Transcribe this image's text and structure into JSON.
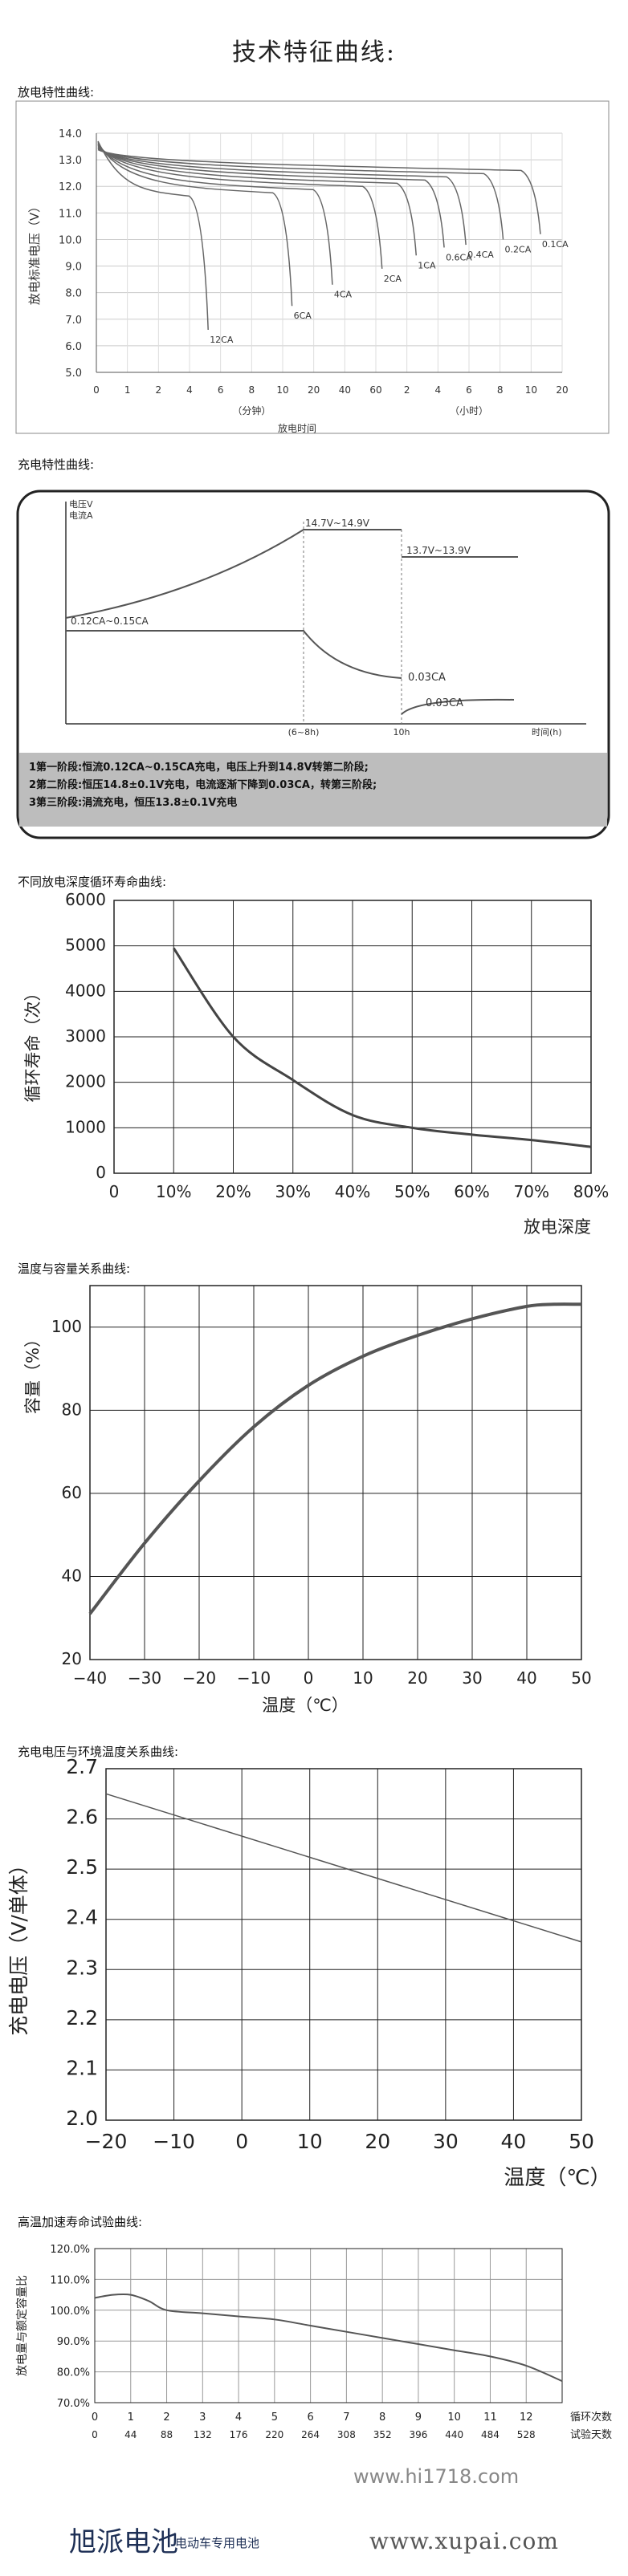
{
  "page": {
    "title": "技术特征曲线:",
    "footer_brand": "旭派电池",
    "footer_sub": "电动车专用电池",
    "watermarks": [
      "www.hi1718.com",
      "www.xupai.com"
    ]
  },
  "chart_data": [
    {
      "id": "discharge",
      "section_label": "放电特性曲线:",
      "type": "line",
      "ylabel": "放电标准电压（V）",
      "xlabel": "放电时间",
      "x_unit_labels": [
        "（分钟）",
        "（小时）"
      ],
      "x_ticks": [
        "0",
        "1",
        "2",
        "4",
        "6",
        "8",
        "10",
        "20",
        "40",
        "60",
        "2",
        "4",
        "6",
        "8",
        "10",
        "20"
      ],
      "ylim": [
        5.0,
        14.0
      ],
      "y_ticks": [
        "14.0",
        "13.0",
        "12.0",
        "11.0",
        "10.0",
        "9.0",
        "8.0",
        "7.0",
        "6.0",
        "5.0"
      ],
      "series": [
        {
          "name": "12CA",
          "end_v": 6.6,
          "end_t": 3.6
        },
        {
          "name": "6CA",
          "end_v": 7.5,
          "end_t": 6.3
        },
        {
          "name": "4CA",
          "end_v": 8.3,
          "end_t": 7.6
        },
        {
          "name": "2CA",
          "end_v": 8.9,
          "end_t": 9.2
        },
        {
          "name": "1CA",
          "end_v": 9.4,
          "end_t": 10.3
        },
        {
          "name": "0.6CA",
          "end_v": 9.7,
          "end_t": 11.2
        },
        {
          "name": "0.4CA",
          "end_v": 9.8,
          "end_t": 11.9
        },
        {
          "name": "0.2CA",
          "end_v": 10.0,
          "end_t": 13.1
        },
        {
          "name": "0.1CA",
          "end_v": 10.2,
          "end_t": 14.3
        }
      ],
      "grid": true
    },
    {
      "id": "charge",
      "section_label": "充电特性曲线:",
      "type": "line",
      "y_axis_labels": [
        "电压V",
        "电流A"
      ],
      "x_axis_label": "时间(h)",
      "x_marks": [
        "(6~8h)",
        "10h"
      ],
      "annotations": [
        "14.7V~14.9V",
        "13.7V~13.9V",
        "0.12CA~0.15CA",
        "0.03CA",
        "0.03CA"
      ],
      "notes": [
        "1第一阶段:恒流0.12CA~0.15CA充电，电压上升到14.8V转第二阶段;",
        "2第二阶段:恒压14.8±0.1V充电，电流逐渐下降到0.03CA，转第三阶段;",
        "3第三阶段:涓流充电，恒压13.8±0.1V充电"
      ]
    },
    {
      "id": "cycle_life",
      "section_label": "不同放电深度循环寿命曲线:",
      "type": "line",
      "xlabel": "放电深度",
      "ylabel": "循环寿命（次）",
      "x": [
        10,
        20,
        30,
        40,
        50,
        60,
        70,
        80
      ],
      "x_ticks": [
        "0",
        "10%",
        "20%",
        "30%",
        "40%",
        "50%",
        "60%",
        "70%",
        "80%"
      ],
      "y_ticks": [
        "0",
        "1000",
        "2000",
        "3000",
        "4000",
        "5000",
        "6000"
      ],
      "xlim": [
        0,
        80
      ],
      "ylim": [
        0,
        6000
      ],
      "series": [
        {
          "values": [
            4950,
            3000,
            2050,
            1280,
            1000,
            850,
            730,
            580
          ]
        }
      ],
      "grid": true
    },
    {
      "id": "temp_capacity",
      "section_label": "温度与容量关系曲线:",
      "type": "line",
      "xlabel": "温度（℃）",
      "ylabel": "容量（%）",
      "x": [
        -40,
        -30,
        -20,
        -10,
        0,
        10,
        20,
        30,
        40,
        45,
        50
      ],
      "x_ticks": [
        "−40",
        "−30",
        "−20",
        "−10",
        "0",
        "10",
        "20",
        "30",
        "40",
        "50"
      ],
      "y_ticks": [
        "20",
        "40",
        "60",
        "80",
        "100"
      ],
      "xlim": [
        -40,
        50
      ],
      "ylim": [
        20,
        110
      ],
      "series": [
        {
          "values": [
            31,
            48,
            63,
            76,
            86,
            93,
            98,
            102,
            105,
            105.5,
            105.5
          ]
        }
      ],
      "grid": true
    },
    {
      "id": "charge_voltage_temp",
      "section_label": "充电电压与环境温度关系曲线:",
      "type": "line",
      "xlabel": "温度（℃）",
      "ylabel": "充电电压（V/单体）",
      "x": [
        -20,
        50
      ],
      "x_ticks": [
        "−20",
        "−10",
        "0",
        "10",
        "20",
        "30",
        "40",
        "50"
      ],
      "y_ticks": [
        "2.0",
        "2.1",
        "2.2",
        "2.3",
        "2.4",
        "2.5",
        "2.6",
        "2.7"
      ],
      "xlim": [
        -20,
        50
      ],
      "ylim": [
        2.0,
        2.7
      ],
      "series": [
        {
          "values": [
            2.65,
            2.355
          ]
        }
      ],
      "grid": true
    },
    {
      "id": "high_temp_life",
      "section_label": "高温加速寿命试验曲线:",
      "type": "line",
      "ylabel": "放电量与额定容量比",
      "x_ticks_top": [
        "0",
        "1",
        "2",
        "3",
        "4",
        "5",
        "6",
        "7",
        "8",
        "9",
        "10",
        "11",
        "12"
      ],
      "x_ticks_bottom": [
        "0",
        "44",
        "88",
        "132",
        "176",
        "220",
        "264",
        "308",
        "352",
        "396",
        "440",
        "484",
        "528"
      ],
      "x_label_top": "循环次数",
      "x_label_bottom": "试验天数",
      "y_ticks": [
        "120.0%",
        "110.0%",
        "100.0%",
        "90.0%",
        "80.0%",
        "70.0%"
      ],
      "x": [
        0,
        0.5,
        1,
        1.5,
        2,
        3,
        4,
        5,
        6,
        7,
        8,
        9,
        10,
        11,
        12,
        13
      ],
      "xlim": [
        0,
        13
      ],
      "ylim": [
        70,
        120
      ],
      "series": [
        {
          "values": [
            104,
            105,
            105,
            103,
            100,
            99,
            98,
            97,
            95,
            93,
            91,
            89,
            87,
            85,
            82,
            77
          ]
        }
      ],
      "grid": true
    }
  ]
}
